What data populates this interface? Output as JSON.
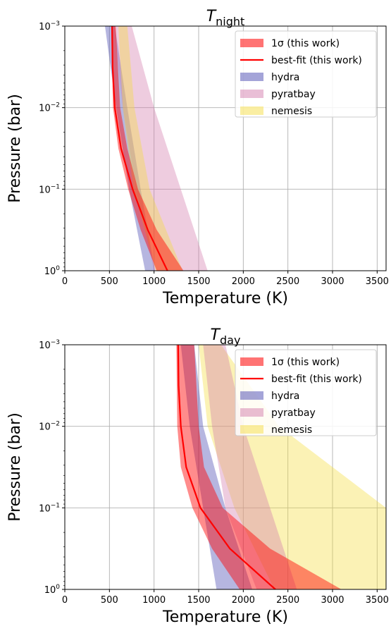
{
  "chart_data": [
    {
      "type": "area",
      "title_main": "T",
      "title_sub": "night",
      "xlabel": "Temperature (K)",
      "ylabel": "Pressure (bar)",
      "xlim": [
        0,
        3600
      ],
      "ylim_log": [
        -3,
        0
      ],
      "yscale": "log",
      "xticks": [
        "0",
        "500",
        "1000",
        "1500",
        "2000",
        "2500",
        "3000",
        "3500"
      ],
      "ytick_base": "10",
      "ytick_exponents": [
        "−3",
        "−2",
        "−1",
        "0"
      ],
      "grid": true,
      "legend_position": "top-right",
      "legend": [
        {
          "label": "1σ (this work)",
          "kind": "patch",
          "color": "#ff0000"
        },
        {
          "label": "best-fit (this work)",
          "kind": "line",
          "color": "#ff0000"
        },
        {
          "label": "hydra",
          "kind": "patch",
          "color": "#5050b4"
        },
        {
          "label": "pyratbay",
          "kind": "patch",
          "color": "#d278aa"
        },
        {
          "label": "nemesis",
          "kind": "patch",
          "color": "#f5dc3c"
        }
      ],
      "series": [
        {
          "name": "hydra",
          "kind": "band",
          "color": "#5050b4",
          "opacity": 0.42,
          "pressure_log": [
            -3,
            -2,
            -1,
            0
          ],
          "lower": [
            450,
            575,
            720,
            900
          ],
          "upper": [
            560,
            700,
            850,
            1010
          ]
        },
        {
          "name": "pyratbay",
          "kind": "band",
          "color": "#d278aa",
          "opacity": 0.38,
          "pressure_log": [
            -3,
            -2,
            -1,
            0
          ],
          "lower": [
            550,
            650,
            800,
            1000
          ],
          "upper": [
            750,
            1000,
            1300,
            1600
          ]
        },
        {
          "name": "nemesis",
          "kind": "band",
          "color": "#f5dc3c",
          "opacity": 0.38,
          "pressure_log": [
            -3,
            -2,
            -1,
            0
          ],
          "lower": [
            600,
            650,
            770,
            1020
          ],
          "upper": [
            700,
            780,
            950,
            1320
          ]
        },
        {
          "name": "1σ (this work)",
          "kind": "band",
          "color": "#ff0000",
          "opacity": 0.45,
          "pressure_log": [
            -3,
            -2,
            -1.5,
            -1,
            -0.5,
            0
          ],
          "lower": [
            520,
            540,
            600,
            710,
            850,
            1030
          ],
          "upper": [
            570,
            620,
            700,
            820,
            1030,
            1330
          ]
        },
        {
          "name": "best-fit (this work)",
          "kind": "line",
          "color": "#ff0000",
          "pressure_log": [
            -3,
            -2.5,
            -2,
            -1.5,
            -1,
            -0.5,
            0
          ],
          "values": [
            530,
            535,
            560,
            630,
            760,
            930,
            1150
          ]
        }
      ]
    },
    {
      "type": "area",
      "title_main": "T",
      "title_sub": "day",
      "xlabel": "Temperature (K)",
      "ylabel": "Pressure (bar)",
      "xlim": [
        0,
        3600
      ],
      "ylim_log": [
        -3,
        0
      ],
      "yscale": "log",
      "xticks": [
        "0",
        "500",
        "1000",
        "1500",
        "2000",
        "2500",
        "3000",
        "3500"
      ],
      "ytick_base": "10",
      "ytick_exponents": [
        "−3",
        "−2",
        "−1",
        "0"
      ],
      "grid": true,
      "legend_position": "top-right",
      "legend": [
        {
          "label": "1σ (this work)",
          "kind": "patch",
          "color": "#ff0000"
        },
        {
          "label": "best-fit (this work)",
          "kind": "line",
          "color": "#ff0000"
        },
        {
          "label": "hydra",
          "kind": "patch",
          "color": "#5050b4"
        },
        {
          "label": "pyratbay",
          "kind": "patch",
          "color": "#d278aa"
        },
        {
          "label": "nemesis",
          "kind": "patch",
          "color": "#f5dc3c"
        }
      ],
      "series": [
        {
          "name": "nemesis",
          "kind": "band",
          "color": "#f5dc3c",
          "opacity": 0.38,
          "pressure_log": [
            -3,
            -2,
            -1,
            0
          ],
          "lower": [
            1500,
            1600,
            1900,
            2350
          ],
          "upper": [
            1750,
            2400,
            3600,
            3600
          ]
        },
        {
          "name": "pyratbay",
          "kind": "band",
          "color": "#d278aa",
          "opacity": 0.38,
          "pressure_log": [
            -3,
            -2,
            -1,
            0
          ],
          "lower": [
            1550,
            1650,
            1800,
            2150
          ],
          "upper": [
            1800,
            2000,
            2300,
            2600
          ]
        },
        {
          "name": "hydra",
          "kind": "band",
          "color": "#5050b4",
          "opacity": 0.42,
          "pressure_log": [
            -3,
            -2,
            -1,
            0
          ],
          "lower": [
            1300,
            1400,
            1550,
            1700
          ],
          "upper": [
            1450,
            1550,
            1800,
            2100
          ]
        },
        {
          "name": "1σ (this work)",
          "kind": "band",
          "color": "#ff0000",
          "opacity": 0.45,
          "pressure_log": [
            -3,
            -2,
            -1.5,
            -1,
            -0.5,
            0
          ],
          "lower": [
            1250,
            1260,
            1300,
            1430,
            1650,
            1960
          ],
          "upper": [
            1450,
            1500,
            1560,
            1770,
            2300,
            3100
          ]
        },
        {
          "name": "best-fit (this work)",
          "kind": "line",
          "color": "#ff0000",
          "pressure_log": [
            -3,
            -2.5,
            -2,
            -1.5,
            -1,
            -0.5,
            0
          ],
          "values": [
            1270,
            1275,
            1300,
            1360,
            1520,
            1850,
            2360
          ]
        }
      ]
    }
  ]
}
